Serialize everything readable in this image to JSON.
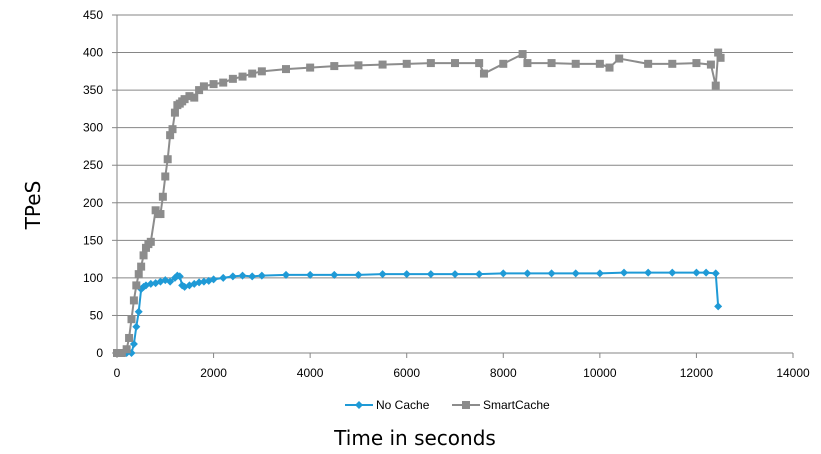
{
  "chart_data": {
    "type": "line",
    "title": "",
    "xlabel": "Time in seconds",
    "ylabel": "TPeS",
    "xlim": [
      0,
      14000
    ],
    "ylim": [
      0,
      450
    ],
    "x_ticks": [
      0,
      2000,
      4000,
      6000,
      8000,
      10000,
      12000,
      14000
    ],
    "y_ticks": [
      0,
      50,
      100,
      150,
      200,
      250,
      300,
      350,
      400,
      450
    ],
    "grid": "horizontal",
    "legend_position": "bottom",
    "series": [
      {
        "name": "No Cache",
        "color": "#1f9ad6",
        "marker": "diamond",
        "x": [
          0,
          100,
          200,
          300,
          350,
          400,
          450,
          500,
          550,
          600,
          700,
          800,
          900,
          1000,
          1100,
          1200,
          1250,
          1300,
          1350,
          1400,
          1500,
          1600,
          1700,
          1800,
          1900,
          2000,
          2200,
          2400,
          2600,
          2800,
          3000,
          3500,
          4000,
          4500,
          5000,
          5500,
          6000,
          6500,
          7000,
          7500,
          8000,
          8500,
          9000,
          9500,
          10000,
          10500,
          11000,
          11500,
          12000,
          12200,
          12400,
          12450
        ],
        "y": [
          0,
          0,
          0,
          0,
          12,
          35,
          55,
          85,
          88,
          90,
          92,
          93,
          95,
          97,
          95,
          100,
          103,
          102,
          90,
          88,
          90,
          92,
          94,
          95,
          96,
          98,
          100,
          102,
          103,
          102,
          103,
          104,
          104,
          104,
          104,
          105,
          105,
          105,
          105,
          105,
          106,
          106,
          106,
          106,
          106,
          107,
          107,
          107,
          107,
          107,
          106,
          62
        ]
      },
      {
        "name": "SmartCache",
        "color": "#8c8c8c",
        "marker": "square",
        "x": [
          0,
          100,
          200,
          250,
          300,
          350,
          400,
          450,
          500,
          550,
          600,
          650,
          700,
          800,
          850,
          900,
          950,
          1000,
          1050,
          1100,
          1150,
          1200,
          1250,
          1300,
          1350,
          1400,
          1500,
          1600,
          1700,
          1800,
          2000,
          2200,
          2400,
          2600,
          2800,
          3000,
          3500,
          4000,
          4500,
          5000,
          5500,
          6000,
          6500,
          7000,
          7500,
          7600,
          8000,
          8400,
          8500,
          9000,
          9500,
          10000,
          10200,
          10400,
          11000,
          11500,
          12000,
          12300,
          12400,
          12450,
          12500
        ],
        "y": [
          0,
          0,
          5,
          20,
          45,
          70,
          90,
          105,
          115,
          130,
          140,
          145,
          148,
          190,
          185,
          185,
          208,
          235,
          258,
          290,
          298,
          320,
          330,
          332,
          335,
          338,
          342,
          340,
          350,
          355,
          358,
          360,
          365,
          368,
          372,
          375,
          378,
          380,
          382,
          383,
          384,
          385,
          386,
          386,
          386,
          372,
          385,
          398,
          386,
          386,
          385,
          385,
          380,
          392,
          385,
          385,
          386,
          384,
          356,
          400,
          393
        ]
      }
    ]
  }
}
